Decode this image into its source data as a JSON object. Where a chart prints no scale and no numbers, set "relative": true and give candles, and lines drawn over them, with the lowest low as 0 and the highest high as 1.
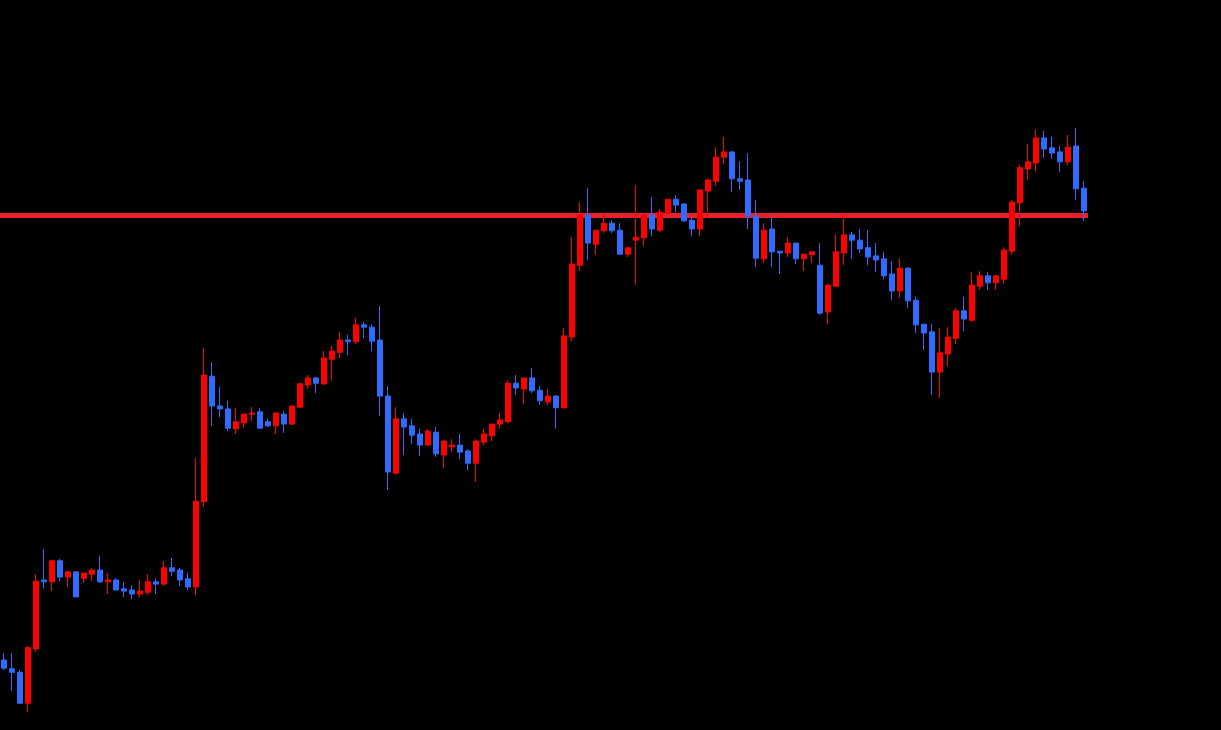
{
  "chart_data": {
    "type": "candlestick",
    "relative": true,
    "categories": [
      null,
      null,
      null,
      null,
      null,
      null,
      null,
      null,
      null,
      null,
      null,
      null,
      null,
      null,
      null,
      null,
      null,
      null,
      null,
      null,
      null,
      null,
      null,
      null,
      null,
      null,
      null,
      null,
      null,
      null,
      null,
      null,
      null,
      null,
      null,
      null,
      null,
      null,
      null,
      null,
      null,
      null,
      null,
      null,
      null,
      null,
      null,
      null,
      null,
      null,
      null,
      null,
      null,
      null,
      null,
      null,
      null,
      null,
      null,
      null,
      null,
      null,
      null,
      null,
      null,
      null,
      null,
      null,
      null,
      null,
      null,
      null,
      null,
      null,
      null,
      null,
      null,
      null,
      null,
      null,
      null,
      null,
      null,
      null,
      null,
      null,
      null,
      null,
      null,
      null,
      null,
      null,
      null,
      null,
      null,
      null,
      null,
      null,
      null,
      null,
      null,
      null,
      null,
      null,
      null,
      null,
      null,
      null,
      null,
      null,
      null,
      null,
      null,
      null,
      null,
      null,
      null,
      null,
      null,
      null,
      null,
      null,
      null,
      null,
      null,
      null,
      null,
      null,
      null,
      null,
      null,
      null,
      null,
      null,
      null,
      null
    ],
    "ohlc": [
      [
        0.089,
        0.101,
        0.072,
        0.075
      ],
      [
        0.074,
        0.101,
        0.036,
        0.068
      ],
      [
        0.068,
        0.072,
        0.015,
        0.015
      ],
      [
        0.015,
        0.113,
        0,
        0.11
      ],
      [
        0.108,
        0.236,
        0.103,
        0.224
      ],
      [
        0.226,
        0.279,
        0.211,
        0.223
      ],
      [
        0.223,
        0.259,
        0.207,
        0.259
      ],
      [
        0.259,
        0.262,
        0.224,
        0.231
      ],
      [
        0.231,
        0.24,
        0.214,
        0.24
      ],
      [
        0.24,
        0.24,
        0.197,
        0.197
      ],
      [
        0.229,
        0.238,
        0.221,
        0.238
      ],
      [
        0.236,
        0.247,
        0.224,
        0.243
      ],
      [
        0.243,
        0.267,
        0.221,
        0.223
      ],
      [
        0.223,
        0.238,
        0.202,
        0.226
      ],
      [
        0.226,
        0.229,
        0.209,
        0.209
      ],
      [
        0.211,
        0.223,
        0.197,
        0.207
      ],
      [
        0.209,
        0.217,
        0.193,
        0.202
      ],
      [
        0.202,
        0.226,
        0.197,
        0.207
      ],
      [
        0.205,
        0.236,
        0.2,
        0.223
      ],
      [
        0.223,
        0.229,
        0.202,
        0.219
      ],
      [
        0.219,
        0.259,
        0.216,
        0.247
      ],
      [
        0.247,
        0.264,
        0.233,
        0.241
      ],
      [
        0.243,
        0.247,
        0.216,
        0.226
      ],
      [
        0.228,
        0.238,
        0.209,
        0.214
      ],
      [
        0.214,
        0.435,
        0.2,
        0.361
      ],
      [
        0.36,
        0.623,
        0.351,
        0.577
      ],
      [
        0.575,
        0.599,
        0.49,
        0.524
      ],
      [
        0.524,
        0.557,
        0.505,
        0.519
      ],
      [
        0.519,
        0.533,
        0.481,
        0.486
      ],
      [
        0.485,
        0.521,
        0.476,
        0.497
      ],
      [
        0.495,
        0.512,
        0.486,
        0.51
      ],
      [
        0.51,
        0.522,
        0.498,
        0.512
      ],
      [
        0.514,
        0.521,
        0.486,
        0.486
      ],
      [
        0.497,
        0.502,
        0.488,
        0.49
      ],
      [
        0.49,
        0.512,
        0.476,
        0.512
      ],
      [
        0.51,
        0.515,
        0.478,
        0.493
      ],
      [
        0.493,
        0.524,
        0.491,
        0.524
      ],
      [
        0.522,
        0.563,
        0.522,
        0.562
      ],
      [
        0.56,
        0.577,
        0.553,
        0.572
      ],
      [
        0.572,
        0.574,
        0.546,
        0.563
      ],
      [
        0.562,
        0.618,
        0.56,
        0.606
      ],
      [
        0.604,
        0.627,
        0.567,
        0.618
      ],
      [
        0.616,
        0.651,
        0.606,
        0.637
      ],
      [
        0.637,
        0.646,
        0.611,
        0.634
      ],
      [
        0.634,
        0.675,
        0.63,
        0.663
      ],
      [
        0.663,
        0.668,
        0.64,
        0.659
      ],
      [
        0.659,
        0.664,
        0.618,
        0.635
      ],
      [
        0.637,
        0.695,
        0.507,
        0.541
      ],
      [
        0.541,
        0.558,
        0.38,
        0.411
      ],
      [
        0.409,
        0.522,
        0.406,
        0.502
      ],
      [
        0.502,
        0.512,
        0.44,
        0.488
      ],
      [
        0.49,
        0.502,
        0.459,
        0.474
      ],
      [
        0.476,
        0.485,
        0.438,
        0.457
      ],
      [
        0.457,
        0.485,
        0.457,
        0.481
      ],
      [
        0.479,
        0.488,
        0.437,
        0.442
      ],
      [
        0.44,
        0.464,
        0.418,
        0.464
      ],
      [
        0.454,
        0.467,
        0.445,
        0.457
      ],
      [
        0.457,
        0.476,
        0.433,
        0.445
      ],
      [
        0.447,
        0.45,
        0.414,
        0.426
      ],
      [
        0.426,
        0.467,
        0.394,
        0.464
      ],
      [
        0.462,
        0.485,
        0.457,
        0.476
      ],
      [
        0.473,
        0.493,
        0.464,
        0.493
      ],
      [
        0.493,
        0.512,
        0.485,
        0.5
      ],
      [
        0.497,
        0.568,
        0.495,
        0.563
      ],
      [
        0.563,
        0.577,
        0.543,
        0.555
      ],
      [
        0.553,
        0.572,
        0.527,
        0.572
      ],
      [
        0.572,
        0.589,
        0.546,
        0.55
      ],
      [
        0.551,
        0.558,
        0.526,
        0.533
      ],
      [
        0.531,
        0.553,
        0.526,
        0.541
      ],
      [
        0.541,
        0.543,
        0.485,
        0.521
      ],
      [
        0.521,
        0.658,
        0.519,
        0.644
      ],
      [
        0.642,
        0.813,
        0.635,
        0.767
      ],
      [
        0.765,
        0.873,
        0.755,
        0.851
      ],
      [
        0.851,
        0.897,
        0.774,
        0.803
      ],
      [
        0.801,
        0.825,
        0.783,
        0.825
      ],
      [
        0.824,
        0.853,
        0.82,
        0.837
      ],
      [
        0.837,
        0.842,
        0.82,
        0.824
      ],
      [
        0.825,
        0.837,
        0.784,
        0.784
      ],
      [
        0.784,
        0.795,
        0.779,
        0.795
      ],
      [
        0.808,
        0.902,
        0.731,
        0.813
      ],
      [
        0.812,
        0.851,
        0.798,
        0.851
      ],
      [
        0.851,
        0.882,
        0.815,
        0.827
      ],
      [
        0.825,
        0.861,
        0.822,
        0.856
      ],
      [
        0.854,
        0.878,
        0.853,
        0.878
      ],
      [
        0.878,
        0.885,
        0.856,
        0.868
      ],
      [
        0.87,
        0.87,
        0.839,
        0.841
      ],
      [
        0.842,
        0.848,
        0.815,
        0.827
      ],
      [
        0.827,
        0.894,
        0.815,
        0.894
      ],
      [
        0.892,
        0.914,
        0.846,
        0.911
      ],
      [
        0.909,
        0.967,
        0.901,
        0.95
      ],
      [
        0.95,
        0.985,
        0.938,
        0.959
      ],
      [
        0.959,
        0.961,
        0.89,
        0.913
      ],
      [
        0.913,
        0.943,
        0.894,
        0.909
      ],
      [
        0.911,
        0.957,
        0.827,
        0.849
      ],
      [
        0.849,
        0.877,
        0.762,
        0.777
      ],
      [
        0.776,
        0.837,
        0.769,
        0.825
      ],
      [
        0.827,
        0.849,
        0.762,
        0.788
      ],
      [
        0.789,
        0.789,
        0.75,
        0.786
      ],
      [
        0.786,
        0.813,
        0.779,
        0.803
      ],
      [
        0.803,
        0.803,
        0.767,
        0.776
      ],
      [
        0.776,
        0.786,
        0.755,
        0.784
      ],
      [
        0.783,
        0.788,
        0.769,
        0.788
      ],
      [
        0.765,
        0.803,
        0.68,
        0.683
      ],
      [
        0.685,
        0.733,
        0.664,
        0.731
      ],
      [
        0.729,
        0.818,
        0.729,
        0.788
      ],
      [
        0.786,
        0.851,
        0.765,
        0.817
      ],
      [
        0.817,
        0.822,
        0.776,
        0.808
      ],
      [
        0.808,
        0.827,
        0.786,
        0.793
      ],
      [
        0.795,
        0.825,
        0.765,
        0.779
      ],
      [
        0.781,
        0.803,
        0.753,
        0.774
      ],
      [
        0.776,
        0.788,
        0.741,
        0.747
      ],
      [
        0.75,
        0.772,
        0.705,
        0.721
      ],
      [
        0.721,
        0.777,
        0.709,
        0.76
      ],
      [
        0.76,
        0.762,
        0.692,
        0.704
      ],
      [
        0.705,
        0.711,
        0.649,
        0.663
      ],
      [
        0.664,
        0.664,
        0.62,
        0.649
      ],
      [
        0.651,
        0.664,
        0.543,
        0.582
      ],
      [
        0.582,
        0.658,
        0.538,
        0.615
      ],
      [
        0.613,
        0.659,
        0.592,
        0.642
      ],
      [
        0.64,
        0.692,
        0.63,
        0.687
      ],
      [
        0.687,
        0.711,
        0.652,
        0.673
      ],
      [
        0.671,
        0.753,
        0.668,
        0.731
      ],
      [
        0.729,
        0.755,
        0.723,
        0.747
      ],
      [
        0.747,
        0.753,
        0.723,
        0.735
      ],
      [
        0.735,
        0.747,
        0.723,
        0.747
      ],
      [
        0.741,
        0.796,
        0.733,
        0.791
      ],
      [
        0.789,
        0.877,
        0.783,
        0.873
      ],
      [
        0.872,
        0.937,
        0.832,
        0.932
      ],
      [
        0.93,
        0.973,
        0.911,
        0.942
      ],
      [
        0.94,
        0.997,
        0.926,
        0.983
      ],
      [
        0.983,
        0.995,
        0.949,
        0.964
      ],
      [
        0.966,
        0.985,
        0.947,
        0.957
      ],
      [
        0.959,
        0.969,
        0.925,
        0.942
      ],
      [
        0.942,
        0.988,
        0.937,
        0.967
      ],
      [
        0.969,
        1,
        0.877,
        0.896
      ],
      [
        0.897,
        0.909,
        0.841,
        0.858
      ]
    ],
    "colors": [
      "#2f6bff",
      "#2f6bff",
      "#2f6bff",
      "#ff0000",
      "#ff0000",
      "#2f6bff",
      "#ff0000",
      "#2f6bff",
      "#ff0000",
      "#2f6bff",
      "#ff0000",
      "#ff0000",
      "#2f6bff",
      "#ff0000",
      "#2f6bff",
      "#2f6bff",
      "#2f6bff",
      "#ff0000",
      "#ff0000",
      "#2f6bff",
      "#ff0000",
      "#2f6bff",
      "#2f6bff",
      "#2f6bff",
      "#ff0000",
      "#ff0000",
      "#2f6bff",
      "#2f6bff",
      "#2f6bff",
      "#ff0000",
      "#ff0000",
      "#ff0000",
      "#2f6bff",
      "#2f6bff",
      "#ff0000",
      "#2f6bff",
      "#ff0000",
      "#ff0000",
      "#ff0000",
      "#2f6bff",
      "#ff0000",
      "#ff0000",
      "#ff0000",
      "#2f6bff",
      "#ff0000",
      "#2f6bff",
      "#2f6bff",
      "#2f6bff",
      "#2f6bff",
      "#ff0000",
      "#2f6bff",
      "#2f6bff",
      "#2f6bff",
      "#ff0000",
      "#2f6bff",
      "#ff0000",
      "#ff0000",
      "#2f6bff",
      "#2f6bff",
      "#ff0000",
      "#ff0000",
      "#ff0000",
      "#ff0000",
      "#ff0000",
      "#2f6bff",
      "#ff0000",
      "#2f6bff",
      "#2f6bff",
      "#ff0000",
      "#2f6bff",
      "#ff0000",
      "#ff0000",
      "#ff0000",
      "#2f6bff",
      "#ff0000",
      "#ff0000",
      "#2f6bff",
      "#2f6bff",
      "#ff0000",
      "#ff0000",
      "#ff0000",
      "#2f6bff",
      "#ff0000",
      "#ff0000",
      "#2f6bff",
      "#2f6bff",
      "#2f6bff",
      "#ff0000",
      "#ff0000",
      "#ff0000",
      "#ff0000",
      "#2f6bff",
      "#2f6bff",
      "#2f6bff",
      "#2f6bff",
      "#ff0000",
      "#2f6bff",
      "#2f6bff",
      "#ff0000",
      "#2f6bff",
      "#ff0000",
      "#ff0000",
      "#2f6bff",
      "#ff0000",
      "#ff0000",
      "#ff0000",
      "#2f6bff",
      "#2f6bff",
      "#2f6bff",
      "#2f6bff",
      "#2f6bff",
      "#2f6bff",
      "#ff0000",
      "#2f6bff",
      "#2f6bff",
      "#2f6bff",
      "#2f6bff",
      "#ff0000",
      "#ff0000",
      "#ff0000",
      "#2f6bff",
      "#ff0000",
      "#ff0000",
      "#2f6bff",
      "#ff0000",
      "#ff0000",
      "#ff0000",
      "#ff0000",
      "#ff0000",
      "#ff0000",
      "#2f6bff",
      "#2f6bff",
      "#2f6bff",
      "#ff0000",
      "#2f6bff",
      "#2f6bff"
    ],
    "ref_lines": [
      {
        "axis": "y",
        "value": 0.854,
        "color": "#e8202a"
      }
    ]
  }
}
